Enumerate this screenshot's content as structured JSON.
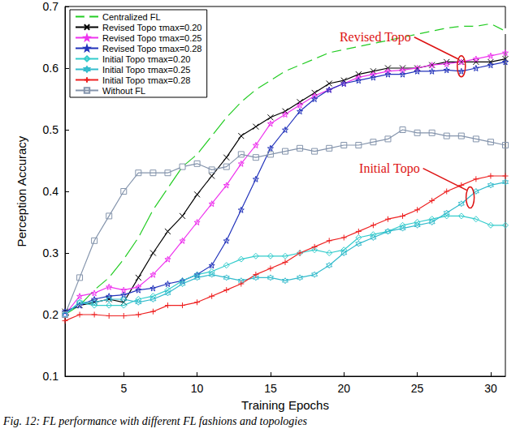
{
  "chart_data": {
    "type": "line",
    "x_label": "Training Epochs",
    "y_label": "Perception Accuracy",
    "caption": "Fig. 12: FL performance with different FL fashions and topologies",
    "x": [
      1,
      2,
      3,
      4,
      5,
      6,
      7,
      8,
      9,
      10,
      11,
      12,
      13,
      14,
      15,
      16,
      17,
      18,
      19,
      20,
      21,
      22,
      23,
      24,
      25,
      26,
      27,
      28,
      29,
      30,
      31
    ],
    "xlim": [
      1,
      31
    ],
    "xticks": [
      5,
      10,
      15,
      20,
      25,
      30
    ],
    "ylim": [
      0.1,
      0.7
    ],
    "yticks": [
      0.1,
      0.2,
      0.3,
      0.4,
      0.5,
      0.6,
      0.7
    ],
    "grid": false,
    "legend": "upper left",
    "series": [
      {
        "name": "Centralized FL",
        "color": "#22cc22",
        "marker": "circle",
        "values": [
          0.2,
          0.215,
          0.24,
          0.26,
          0.29,
          0.325,
          0.37,
          0.405,
          0.44,
          0.46,
          0.49,
          0.52,
          0.545,
          0.565,
          0.58,
          0.595,
          0.605,
          0.615,
          0.625,
          0.63,
          0.635,
          0.64,
          0.645,
          0.65,
          0.655,
          0.66,
          0.665,
          0.668,
          0.668,
          0.672,
          0.66
        ]
      },
      {
        "name": "Revised Topo τmax=0.20",
        "color": "#000000",
        "marker": "x",
        "values": [
          0.205,
          0.215,
          0.22,
          0.225,
          0.22,
          0.26,
          0.3,
          0.335,
          0.36,
          0.395,
          0.425,
          0.455,
          0.49,
          0.505,
          0.52,
          0.53,
          0.545,
          0.56,
          0.575,
          0.58,
          0.59,
          0.595,
          0.6,
          0.6,
          0.6,
          0.605,
          0.61,
          0.61,
          0.61,
          0.61,
          0.615
        ]
      },
      {
        "name": "Revised Topo τmax=0.25",
        "color": "#ee33ee",
        "marker": "star",
        "values": [
          0.2,
          0.23,
          0.235,
          0.245,
          0.24,
          0.245,
          0.265,
          0.29,
          0.32,
          0.35,
          0.38,
          0.41,
          0.445,
          0.475,
          0.51,
          0.525,
          0.54,
          0.555,
          0.565,
          0.575,
          0.585,
          0.59,
          0.595,
          0.597,
          0.6,
          0.605,
          0.607,
          0.61,
          0.615,
          0.62,
          0.625
        ]
      },
      {
        "name": "Revised Topo τmax=0.28",
        "color": "#2233bb",
        "marker": "star",
        "values": [
          0.205,
          0.215,
          0.225,
          0.23,
          0.232,
          0.24,
          0.243,
          0.25,
          0.255,
          0.265,
          0.28,
          0.32,
          0.37,
          0.42,
          0.47,
          0.5,
          0.53,
          0.55,
          0.565,
          0.575,
          0.58,
          0.585,
          0.59,
          0.59,
          0.595,
          0.595,
          0.597,
          0.595,
          0.6,
          0.605,
          0.61
        ]
      },
      {
        "name": "Initial Topo τmax=0.20",
        "color": "#33cccc",
        "marker": "diamond",
        "values": [
          0.2,
          0.22,
          0.215,
          0.215,
          0.215,
          0.225,
          0.23,
          0.24,
          0.255,
          0.265,
          0.27,
          0.28,
          0.29,
          0.295,
          0.295,
          0.295,
          0.3,
          0.305,
          0.3,
          0.305,
          0.325,
          0.33,
          0.335,
          0.345,
          0.35,
          0.355,
          0.36,
          0.36,
          0.355,
          0.345,
          0.345
        ]
      },
      {
        "name": "Initial Topo τmax=0.25",
        "color": "#33bbcc",
        "marker": "hexagram",
        "values": [
          0.2,
          0.22,
          0.22,
          0.225,
          0.225,
          0.22,
          0.225,
          0.235,
          0.25,
          0.26,
          0.265,
          0.26,
          0.255,
          0.26,
          0.26,
          0.255,
          0.26,
          0.265,
          0.28,
          0.3,
          0.315,
          0.325,
          0.335,
          0.34,
          0.345,
          0.35,
          0.365,
          0.38,
          0.4,
          0.41,
          0.415
        ]
      },
      {
        "name": "Initial Topo τmax=0.28",
        "color": "#ee2222",
        "marker": "plus",
        "values": [
          0.19,
          0.2,
          0.2,
          0.198,
          0.198,
          0.2,
          0.205,
          0.215,
          0.215,
          0.22,
          0.23,
          0.24,
          0.25,
          0.265,
          0.275,
          0.285,
          0.3,
          0.31,
          0.32,
          0.325,
          0.335,
          0.345,
          0.355,
          0.36,
          0.37,
          0.385,
          0.4,
          0.41,
          0.42,
          0.425,
          0.425
        ]
      },
      {
        "name": "Without FL",
        "color": "#8494ac",
        "marker": "square",
        "values": [
          0.2,
          0.26,
          0.32,
          0.36,
          0.4,
          0.43,
          0.43,
          0.43,
          0.44,
          0.445,
          0.435,
          0.44,
          0.46,
          0.455,
          0.46,
          0.465,
          0.47,
          0.465,
          0.47,
          0.475,
          0.475,
          0.48,
          0.485,
          0.5,
          0.495,
          0.495,
          0.49,
          0.49,
          0.485,
          0.48,
          0.475
        ]
      }
    ],
    "annotations": [
      {
        "text": "Revised Topo",
        "x": 28,
        "y": 0.603
      },
      {
        "text": "Initial Topo",
        "x": 28.6,
        "y": 0.39
      }
    ]
  }
}
